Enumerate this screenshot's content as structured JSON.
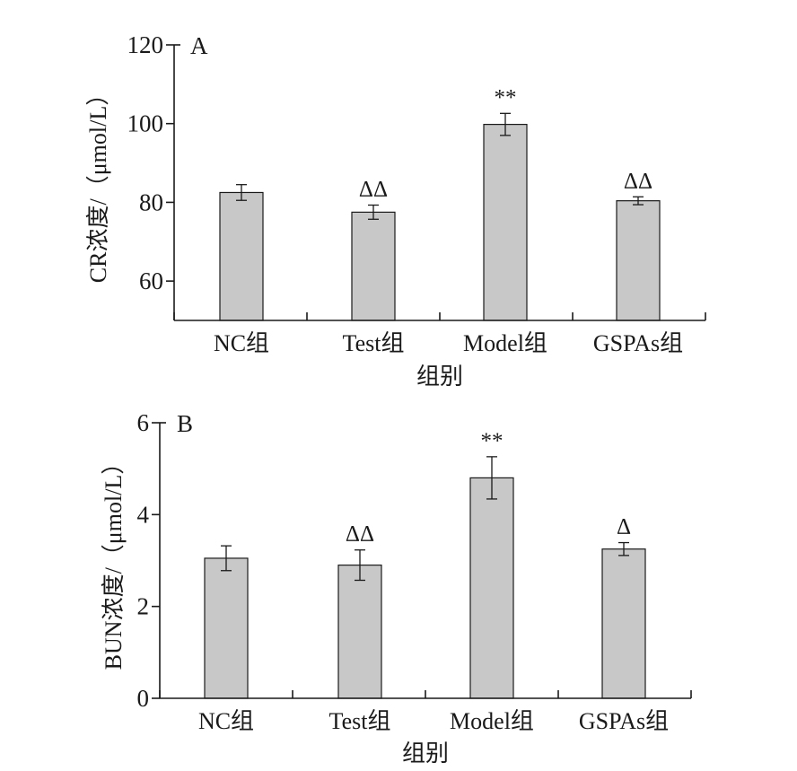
{
  "chart_data": [
    {
      "type": "bar",
      "panel_label": "A",
      "ylabel": "CR浓度/（μmol/L）",
      "xlabel": "组别",
      "categories": [
        "NC组",
        "Test组",
        "Model组",
        "GSPAs组"
      ],
      "values": [
        82.5,
        77.5,
        99.8,
        80.4
      ],
      "errors": [
        2.0,
        1.8,
        2.8,
        1.0
      ],
      "annotations": [
        "",
        "ΔΔ",
        "**",
        "ΔΔ"
      ],
      "ylim": [
        50,
        120
      ],
      "yticks": [
        60,
        80,
        100,
        120
      ],
      "grid": false
    },
    {
      "type": "bar",
      "panel_label": "B",
      "ylabel": "BUN浓度/（μmol/L）",
      "xlabel": "组别",
      "categories": [
        "NC组",
        "Test组",
        "Model组",
        "GSPAs组"
      ],
      "values": [
        3.05,
        2.9,
        4.8,
        3.25
      ],
      "errors": [
        0.27,
        0.33,
        0.46,
        0.14
      ],
      "annotations": [
        "",
        "ΔΔ",
        "**",
        "Δ"
      ],
      "ylim": [
        0,
        6
      ],
      "yticks": [
        0,
        2,
        4,
        6
      ],
      "grid": false
    }
  ]
}
